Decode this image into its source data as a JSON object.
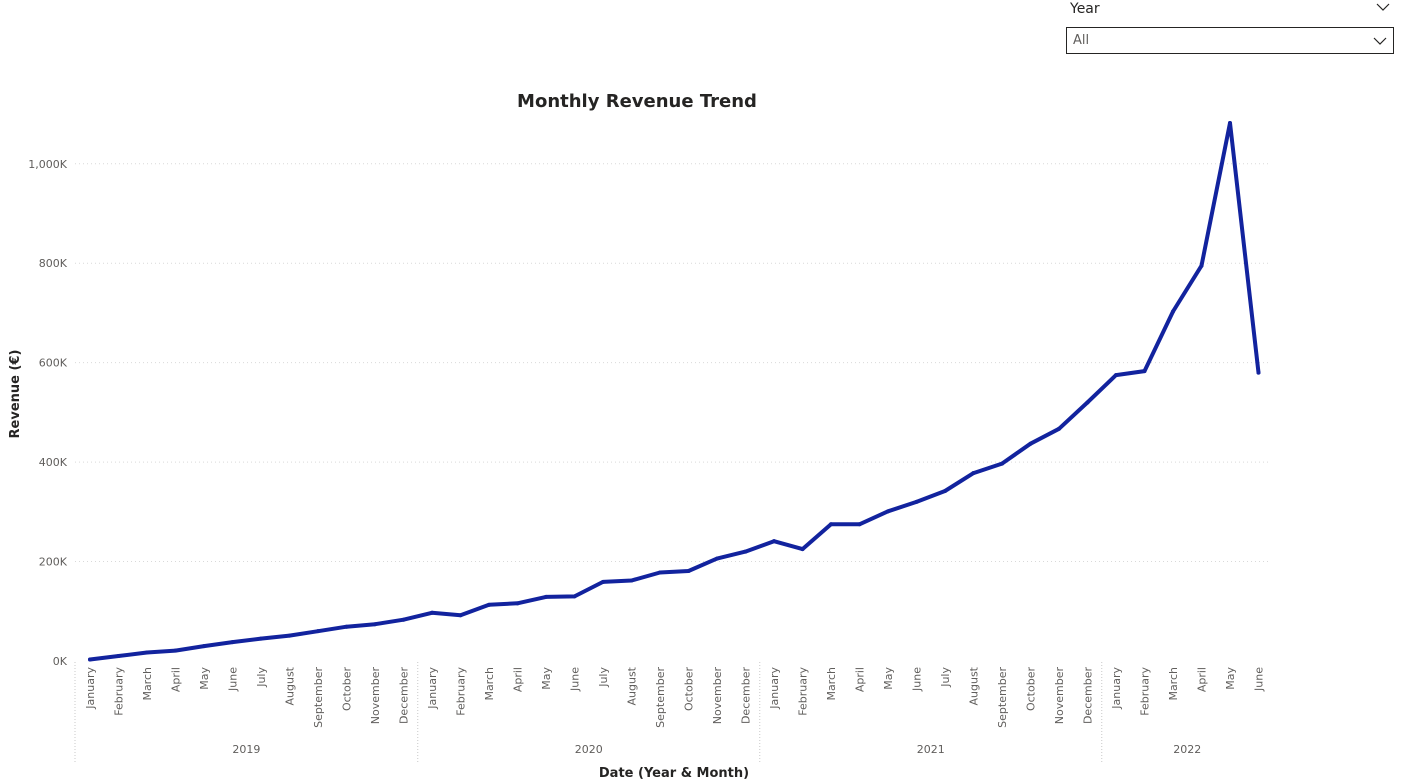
{
  "slicer": {
    "title": "Year",
    "value": "All"
  },
  "chart_data": {
    "type": "line",
    "title": "Monthly Revenue Trend",
    "xlabel": "Date (Year & Month)",
    "ylabel": "Revenue (€)",
    "ylim": [
      0,
      1080000
    ],
    "yticks": [
      0,
      200000,
      400000,
      600000,
      800000,
      1000000
    ],
    "ytick_labels": [
      "0K",
      "200K",
      "400K",
      "600K",
      "800K",
      "1,000K"
    ],
    "grid": true,
    "line_color": "#12239e",
    "years": [
      {
        "label": "2019",
        "months": [
          "January",
          "February",
          "March",
          "April",
          "May",
          "June",
          "July",
          "August",
          "September",
          "October",
          "November",
          "December"
        ]
      },
      {
        "label": "2020",
        "months": [
          "January",
          "February",
          "March",
          "April",
          "May",
          "June",
          "July",
          "August",
          "September",
          "October",
          "November",
          "December"
        ]
      },
      {
        "label": "2021",
        "months": [
          "January",
          "February",
          "March",
          "April",
          "May",
          "June",
          "July",
          "August",
          "September",
          "October",
          "November",
          "December"
        ]
      },
      {
        "label": "2022",
        "months": [
          "January",
          "February",
          "March",
          "April",
          "May",
          "June"
        ]
      }
    ],
    "series": [
      {
        "values": [
          3000,
          10000,
          17000,
          21000,
          30000,
          38000,
          45000,
          51000,
          60000,
          69000,
          74000,
          83000,
          97000,
          92000,
          113000,
          116000,
          129000,
          130000,
          159000,
          162000,
          178000,
          181000,
          206000,
          220000,
          241000,
          225000,
          275000,
          275000,
          301000,
          320000,
          342000,
          378000,
          397000,
          437000,
          467000,
          520000,
          575000,
          583000,
          703000,
          795000,
          1082000,
          580000
        ]
      }
    ]
  }
}
